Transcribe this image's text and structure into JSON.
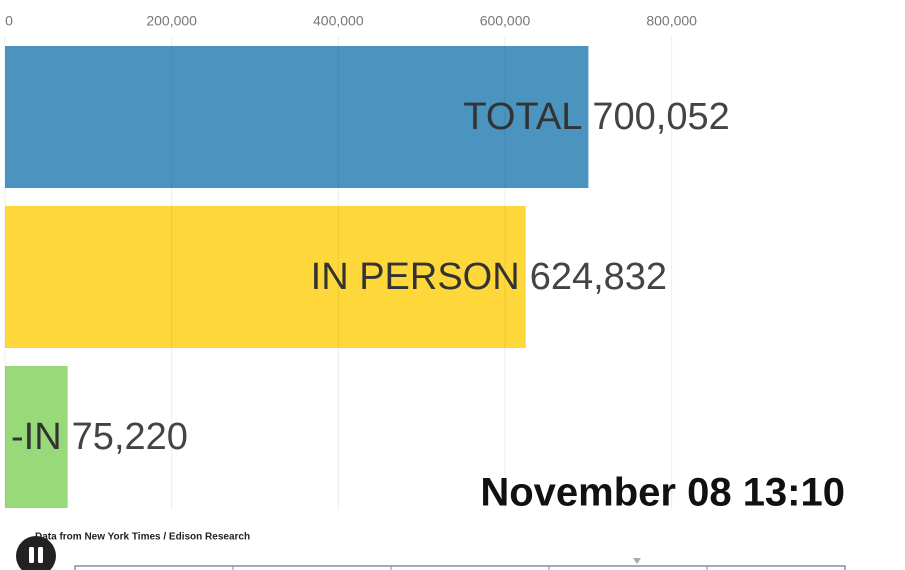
{
  "chart_data": {
    "type": "hbar",
    "categories": [
      "TOTAL",
      "IN PERSON",
      "-IN"
    ],
    "values": [
      700052,
      624832,
      75220
    ],
    "value_labels": [
      "700,052",
      "624,832",
      "75,220"
    ],
    "colors": [
      "#4a94bf",
      "#fed83a",
      "#98d97a"
    ],
    "xlim": [
      0,
      1080000
    ],
    "xticks": [
      0,
      {
        "value": 200000,
        "label": "200,000"
      },
      {
        "value": 400000,
        "label": "400,000"
      },
      {
        "value": 600000,
        "label": "600,000"
      },
      {
        "value": 800000,
        "label": "800,000"
      }
    ],
    "grid": true,
    "date_label": "November 08 13:10",
    "source": "Data from New York Times / Edison Research"
  }
}
